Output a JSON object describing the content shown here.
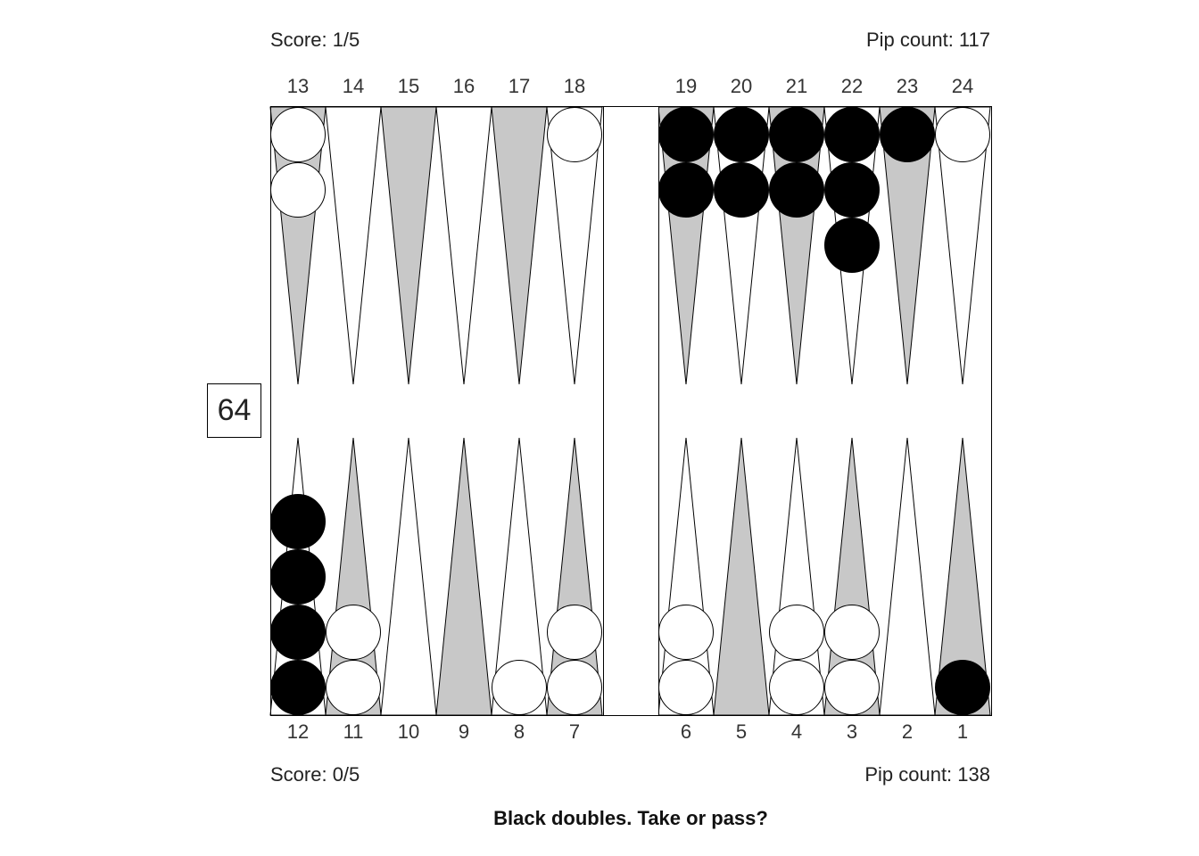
{
  "top": {
    "score": "Score: 1/5",
    "pip": "Pip count: 117"
  },
  "bottom": {
    "score": "Score: 0/5",
    "pip": "Pip count: 138"
  },
  "cube_value": "64",
  "prompt": "Black doubles. Take or pass?",
  "colors": {
    "dark_point": "#c8c8c8",
    "light_point": "#ffffff",
    "black_checker": "#000000",
    "white_checker": "#ffffff",
    "line": "#000000"
  },
  "board": {
    "top_labels": [
      "13",
      "14",
      "15",
      "16",
      "17",
      "18",
      "19",
      "20",
      "21",
      "22",
      "23",
      "24"
    ],
    "bottom_labels": [
      "12",
      "11",
      "10",
      "9",
      "8",
      "7",
      "6",
      "5",
      "4",
      "3",
      "2",
      "1"
    ],
    "points": [
      {
        "point": 1,
        "color": "black",
        "count": 1
      },
      {
        "point": 3,
        "color": "white",
        "count": 2
      },
      {
        "point": 4,
        "color": "white",
        "count": 2
      },
      {
        "point": 6,
        "color": "white",
        "count": 2
      },
      {
        "point": 7,
        "color": "white",
        "count": 2
      },
      {
        "point": 8,
        "color": "white",
        "count": 1
      },
      {
        "point": 11,
        "color": "white",
        "count": 2
      },
      {
        "point": 12,
        "color": "black",
        "count": 4
      },
      {
        "point": 13,
        "color": "white",
        "count": 2
      },
      {
        "point": 18,
        "color": "white",
        "count": 1
      },
      {
        "point": 19,
        "color": "black",
        "count": 2
      },
      {
        "point": 20,
        "color": "black",
        "count": 2
      },
      {
        "point": 21,
        "color": "black",
        "count": 2
      },
      {
        "point": 22,
        "color": "black",
        "count": 3
      },
      {
        "point": 23,
        "color": "black",
        "count": 1
      },
      {
        "point": 24,
        "color": "white",
        "count": 1
      }
    ]
  }
}
